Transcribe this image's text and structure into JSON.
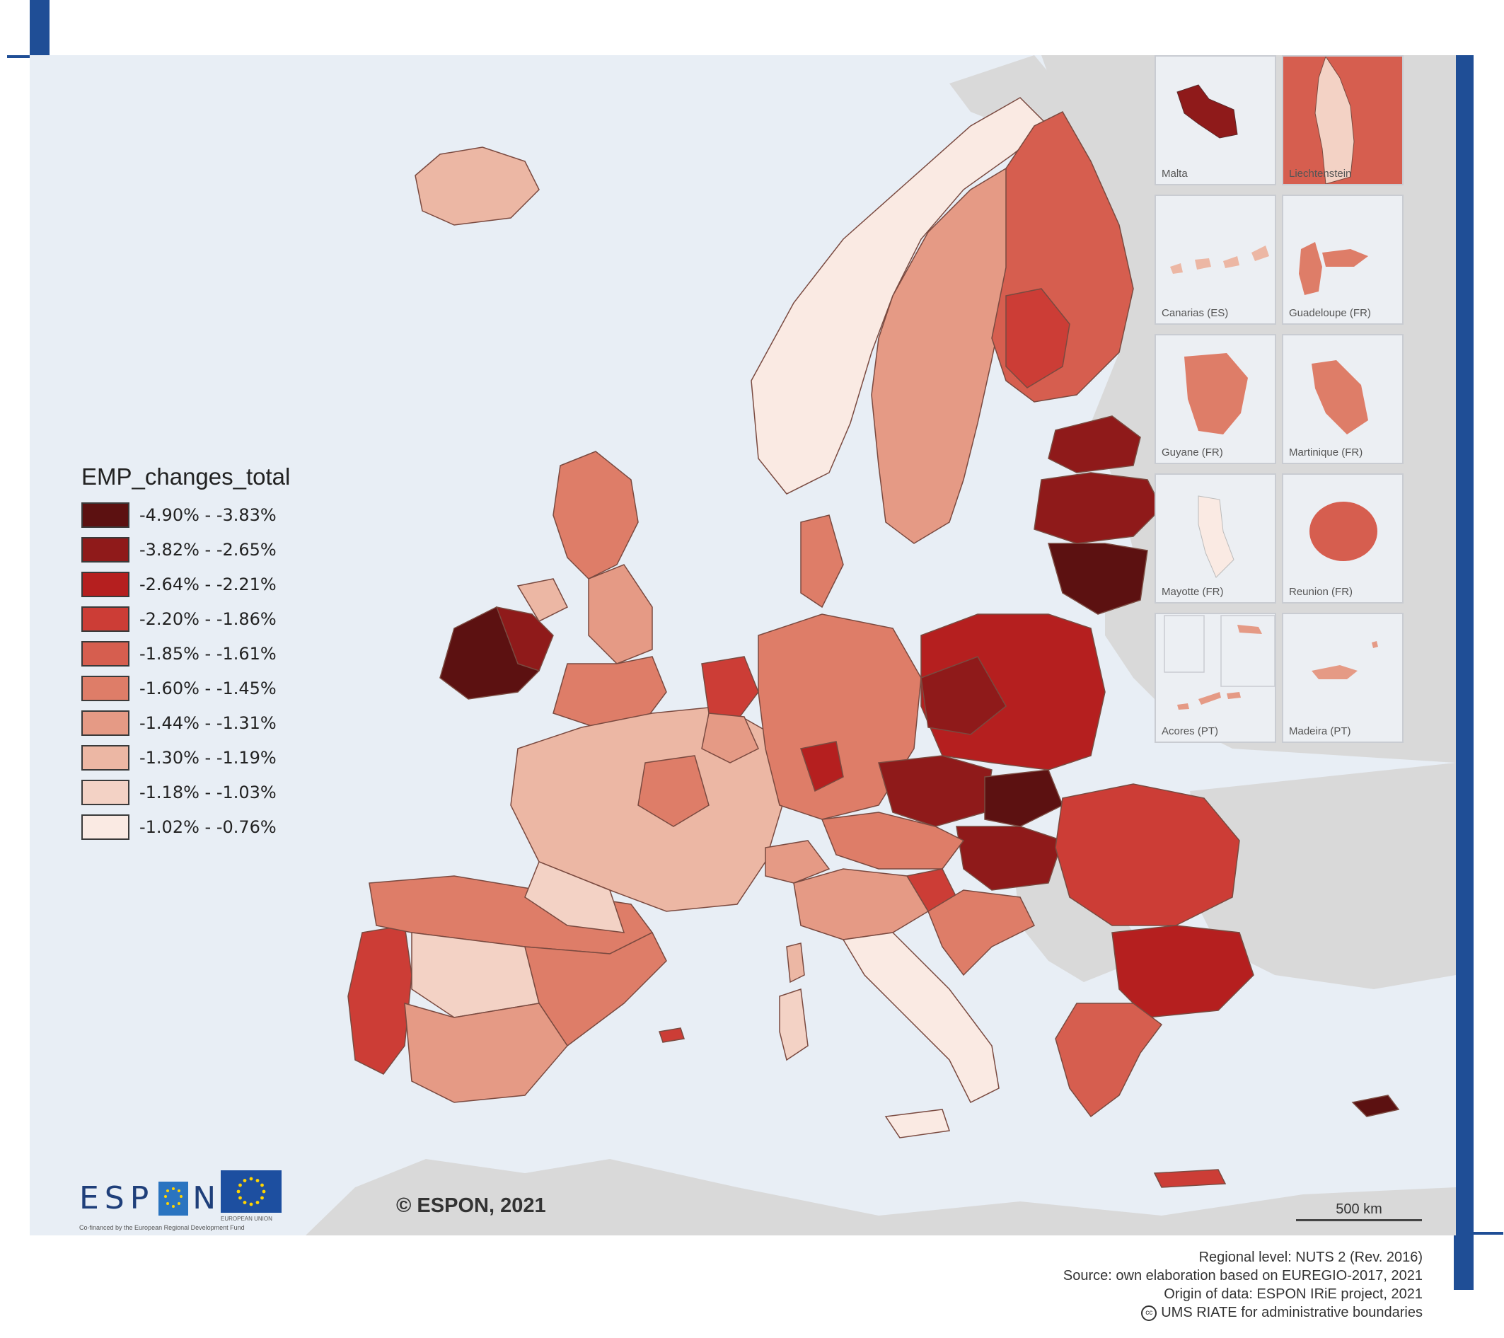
{
  "legend": {
    "title": "EMP_changes_total",
    "classes": [
      {
        "label": "-4.90% - -3.83%",
        "color": "#5c1111"
      },
      {
        "label": "-3.82% - -2.65%",
        "color": "#8f1a1a"
      },
      {
        "label": "-2.64% - -2.21%",
        "color": "#b51f1f"
      },
      {
        "label": "-2.20% - -1.86%",
        "color": "#cc3d36"
      },
      {
        "label": "-1.85% - -1.61%",
        "color": "#d65e4f"
      },
      {
        "label": "-1.60% - -1.45%",
        "color": "#de7d68"
      },
      {
        "label": "-1.44% - -1.31%",
        "color": "#e59a85"
      },
      {
        "label": "-1.30% - -1.19%",
        "color": "#ecb7a4"
      },
      {
        "label": "-1.18% - -1.03%",
        "color": "#f3d2c5"
      },
      {
        "label": "-1.02% - -0.76%",
        "color": "#faeae3"
      }
    ]
  },
  "insets": [
    {
      "name": "Malta",
      "color": "#8f1a1a"
    },
    {
      "name": "Liechtenstein",
      "color": "#d65e4f"
    },
    {
      "name": "Canarias (ES)",
      "color": "#ecb7a4"
    },
    {
      "name": "Guadeloupe (FR)",
      "color": "#de7d68"
    },
    {
      "name": "Guyane (FR)",
      "color": "#de7d68"
    },
    {
      "name": "Martinique (FR)",
      "color": "#de7d68"
    },
    {
      "name": "Mayotte (FR)",
      "color": "#faeae3"
    },
    {
      "name": "Reunion (FR)",
      "color": "#d65e4f"
    },
    {
      "name": "Acores (PT)",
      "color": "#e59a85"
    },
    {
      "name": "Madeira (PT)",
      "color": "#e59a85"
    }
  ],
  "copyright": "© ESPON, 2021",
  "scale_label": "500 km",
  "logo": {
    "text_before": "ESP",
    "text_after": "N",
    "funding": "Co-financed by the European Regional Development Fund",
    "eu": "EUROPEAN UNION"
  },
  "credits": {
    "line1": "Regional level: NUTS 2 (Rev. 2016)",
    "line2": "Source: own elaboration based on EUREGIO-2017, 2021",
    "line3": "Origin of data: ESPON IRiE project, 2021",
    "line4": "UMS RIATE for administrative boundaries",
    "cc": "cc"
  },
  "colors": {
    "frame": "#1f4e96",
    "sea": "#e8eef5",
    "non_eu_land": "#d9d9d9"
  }
}
